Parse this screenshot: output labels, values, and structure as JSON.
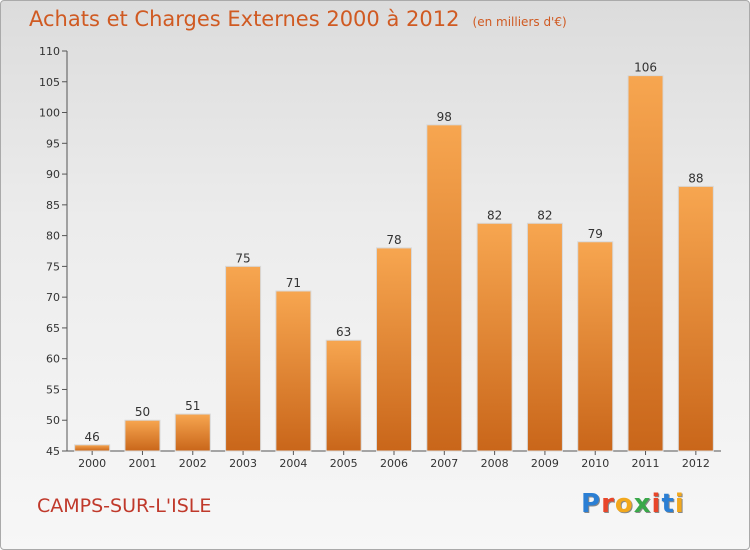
{
  "header": {
    "title": "Achats et Charges Externes 2000 à 2012",
    "unit": "(en milliers d'€)"
  },
  "footer": {
    "city": "CAMPS-SUR-L'ISLE",
    "logo_letters": [
      "P",
      "r",
      "o",
      "x",
      "i",
      "t",
      "i"
    ],
    "logo_colors": [
      "#2b7fd4",
      "#e8462a",
      "#f2a81d",
      "#3aa84a",
      "#e8462a",
      "#2b7fd4",
      "#f2a81d"
    ]
  },
  "colors": {
    "title": "#d05a22",
    "city": "#c0392b",
    "bar_light": "#f7a650",
    "bar_dark": "#c9661a"
  },
  "chart_data": {
    "type": "bar",
    "title": "Achats et Charges Externes 2000 à 2012",
    "subtitle": "(en milliers d'€)",
    "categories": [
      "2000",
      "2001",
      "2002",
      "2003",
      "2004",
      "2005",
      "2006",
      "2007",
      "2008",
      "2009",
      "2010",
      "2011",
      "2012"
    ],
    "values": [
      46,
      50,
      51,
      75,
      71,
      63,
      78,
      98,
      82,
      82,
      79,
      106,
      88
    ],
    "ylim": [
      45,
      110
    ],
    "yticks": [
      45,
      50,
      55,
      60,
      65,
      70,
      75,
      80,
      85,
      90,
      95,
      100,
      105,
      110
    ],
    "grid": false,
    "legend": "none"
  }
}
